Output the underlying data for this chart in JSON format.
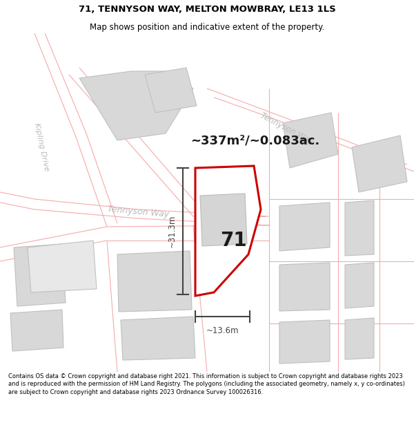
{
  "title": "71, TENNYSON WAY, MELTON MOWBRAY, LE13 1LS",
  "subtitle": "Map shows position and indicative extent of the property.",
  "area_text": "~337m²/~0.083ac.",
  "width_label": "~13.6m",
  "height_label": "~31.3m",
  "number_label": "71",
  "footer": "Contains OS data © Crown copyright and database right 2021. This information is subject to Crown copyright and database rights 2023 and is reproduced with the permission of HM Land Registry. The polygons (including the associated geometry, namely x, y co-ordinates) are subject to Crown copyright and database rights 2023 Ordnance Survey 100026316.",
  "bg_color": "#ffffff",
  "map_bg": "#f8f8f8",
  "highlight_color": "#cc0000",
  "dim_color": "#444444",
  "plot_outline": "#f5aaaa",
  "building_fill": "#d8d8d8",
  "building_edge": "#c0c0c0",
  "road_label_color": "#bbbbbb",
  "figsize": [
    6.0,
    6.25
  ],
  "dpi": 100,
  "title_fontsize": 9.5,
  "subtitle_fontsize": 8.5
}
